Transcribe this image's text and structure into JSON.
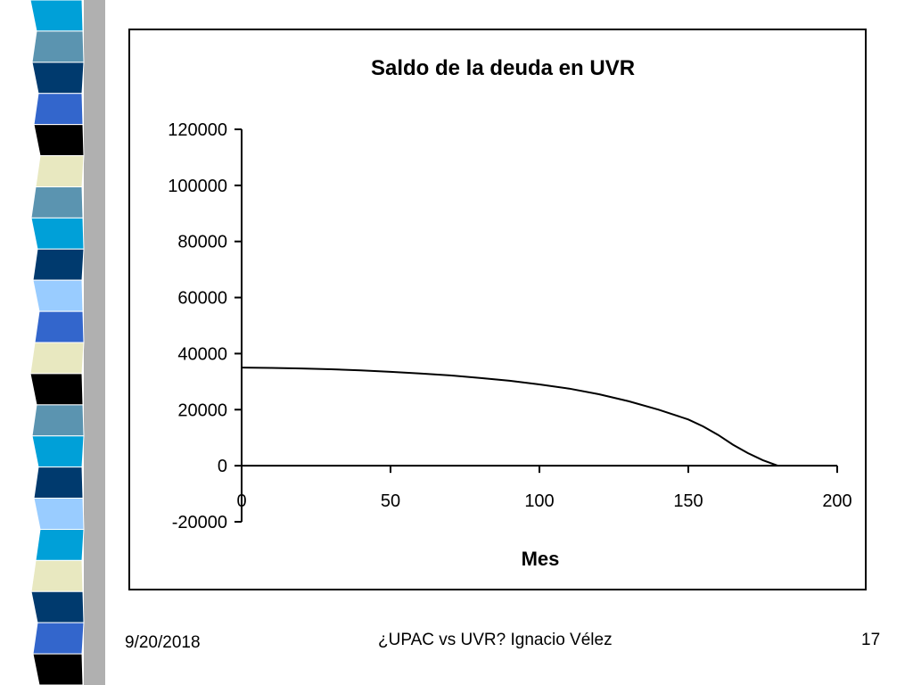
{
  "decoration": {
    "stripe_colors": [
      "#00a0d8",
      "#5b94b0",
      "#003a6e",
      "#3366cc",
      "#000000",
      "#e8e8c0",
      "#5b94b0",
      "#00a0d8",
      "#003a6e",
      "#99ccff",
      "#3366cc",
      "#e8e8c0",
      "#000000",
      "#5b94b0",
      "#00a0d8",
      "#003a6e",
      "#99ccff",
      "#00a0d8",
      "#e8e8c0",
      "#003a6e",
      "#3366cc",
      "#000000"
    ]
  },
  "footer": {
    "date": "9/20/2018",
    "title": "¿UPAC vs UVR? Ignacio Vélez",
    "page": "17"
  },
  "chart_data": {
    "type": "line",
    "title": "Saldo de la deuda en UVR",
    "xlabel": "Mes",
    "ylabel": "",
    "xlim": [
      0,
      200
    ],
    "ylim": [
      -20000,
      120000
    ],
    "x_ticks": [
      "0",
      "50",
      "100",
      "150",
      "200"
    ],
    "y_ticks": [
      "120000",
      "100000",
      "80000",
      "60000",
      "40000",
      "20000",
      "0",
      "-20000"
    ],
    "grid": false,
    "legend": "none",
    "line_color": "#000000",
    "series": [
      {
        "x": [
          0,
          10,
          20,
          30,
          40,
          50,
          60,
          70,
          80,
          90,
          100,
          110,
          120,
          130,
          140,
          150,
          155,
          160,
          165,
          170,
          175,
          180
        ],
        "values": [
          35000,
          34900,
          34700,
          34400,
          34000,
          33500,
          32900,
          32200,
          31300,
          30300,
          29000,
          27500,
          25500,
          23000,
          20000,
          16500,
          14000,
          11000,
          7500,
          4500,
          2000,
          0
        ]
      }
    ]
  }
}
